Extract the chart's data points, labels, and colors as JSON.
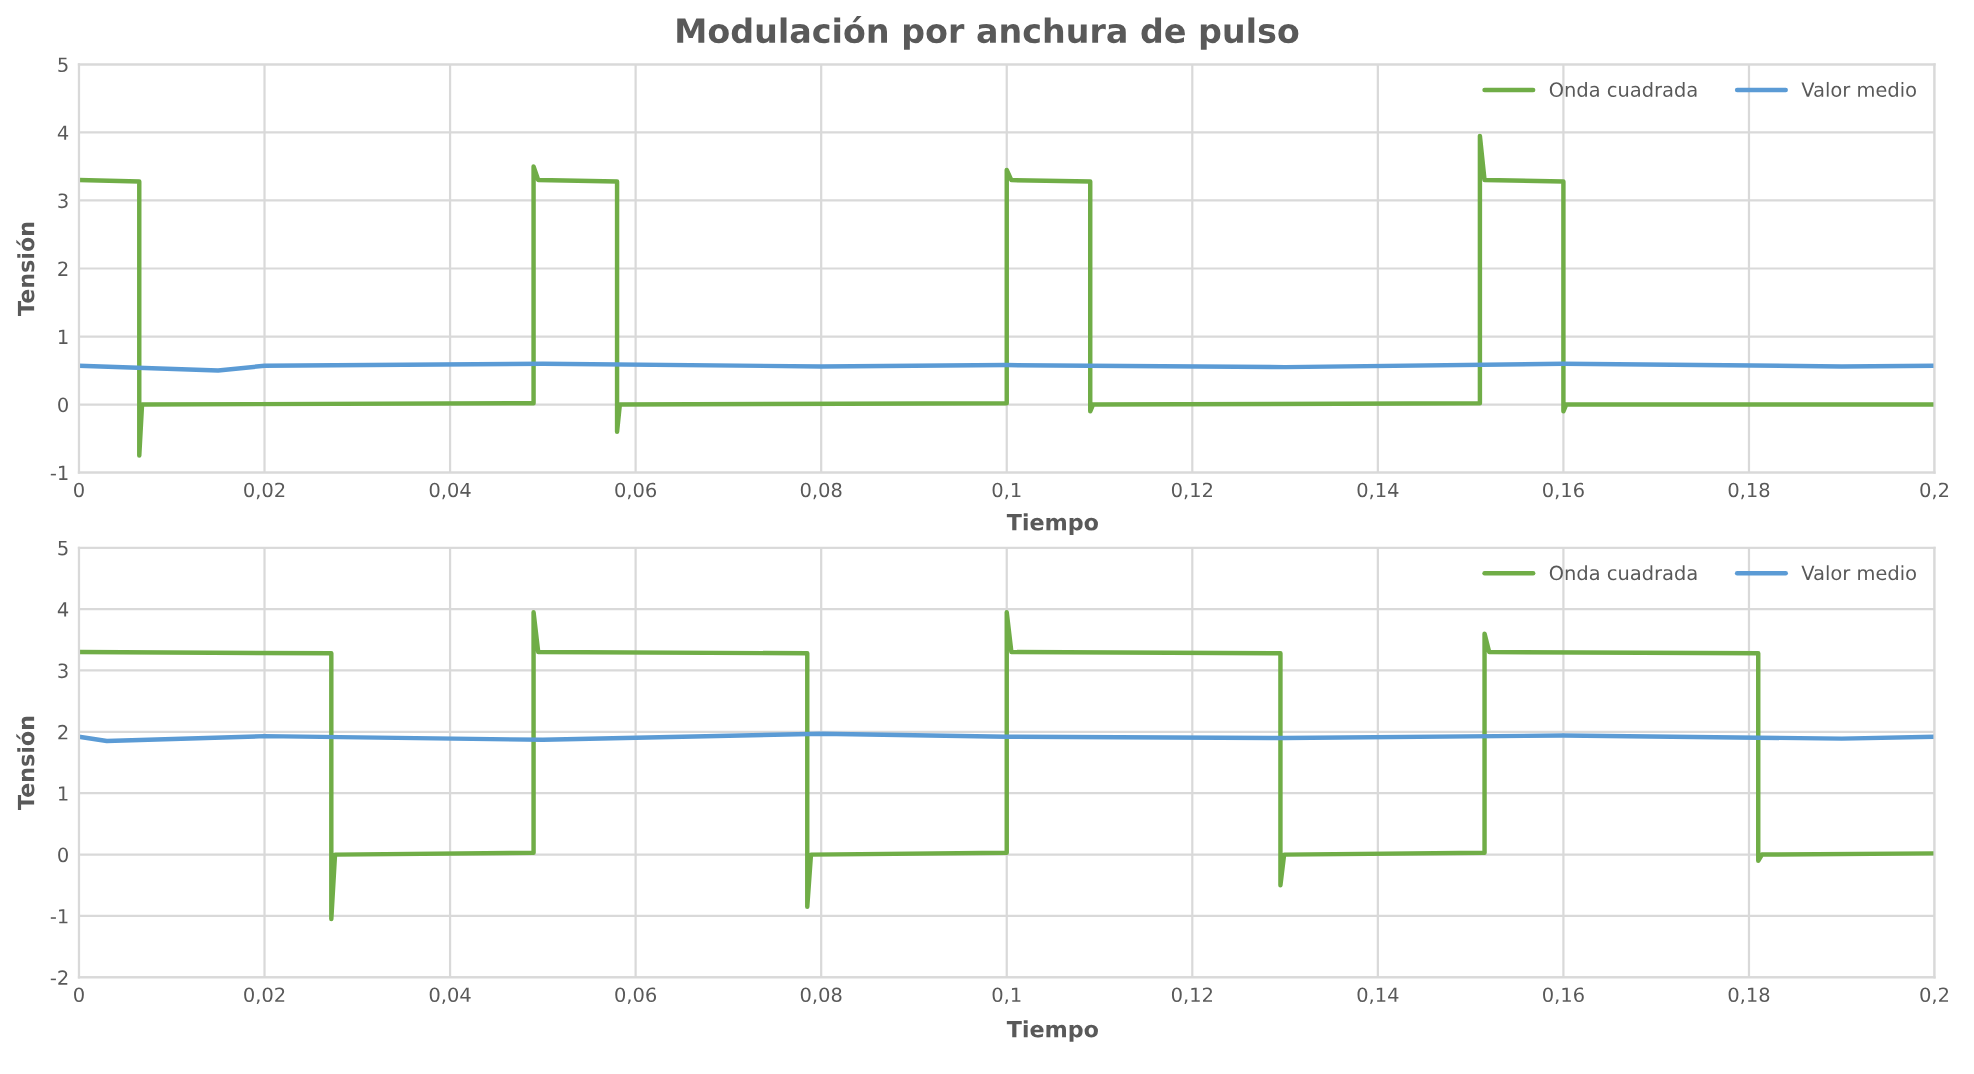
{
  "chart_data": [
    {
      "type": "line",
      "title": "Modulación por anchura de pulso",
      "xlabel": "Tiempo",
      "ylabel": "Tensión",
      "xlim": [
        0,
        0.2
      ],
      "xticks": [
        0,
        {
          "value": 0.02,
          "label": "0,02"
        },
        {
          "value": 0.04,
          "label": "0,04"
        },
        {
          "value": 0.06,
          "label": "0,06"
        },
        {
          "value": 0.08,
          "label": "0,08"
        },
        {
          "value": 0.1,
          "label": "0,1"
        },
        {
          "value": 0.12,
          "label": "0,12"
        },
        {
          "value": 0.14,
          "label": "0,14"
        },
        {
          "value": 0.16,
          "label": "0,16"
        },
        {
          "value": 0.18,
          "label": "0,18"
        },
        {
          "value": 0.2,
          "label": "0,2"
        }
      ],
      "ylim": [
        -1,
        5
      ],
      "yticks": [
        -1,
        0,
        1,
        2,
        3,
        4,
        5
      ],
      "grid": true,
      "legend": "top right",
      "series": [
        {
          "name": "Onda cuadrada",
          "color": "#70ad47",
          "x": [
            0,
            0.0065,
            0.0065,
            0.0068,
            0.049,
            0.049,
            0.0495,
            0.058,
            0.058,
            0.0583,
            0.1,
            0.1,
            0.1005,
            0.109,
            0.109,
            0.1093,
            0.151,
            0.151,
            0.1515,
            0.16,
            0.16,
            0.1603,
            0.2
          ],
          "values": [
            3.3,
            3.28,
            -0.75,
            0,
            0.02,
            3.5,
            3.3,
            3.28,
            -0.4,
            0,
            0.02,
            3.45,
            3.3,
            3.28,
            -0.1,
            0,
            0.02,
            3.95,
            3.3,
            3.28,
            -0.1,
            0,
            0
          ]
        },
        {
          "name": "Valor medio",
          "color": "#5b9bd5",
          "x": [
            0,
            0.015,
            0.02,
            0.05,
            0.08,
            0.1,
            0.13,
            0.16,
            0.19,
            0.2
          ],
          "values": [
            0.57,
            0.5,
            0.57,
            0.6,
            0.56,
            0.58,
            0.55,
            0.6,
            0.56,
            0.57
          ]
        }
      ]
    },
    {
      "type": "line",
      "xlabel": "Tiempo",
      "ylabel": "Tensión",
      "xlim": [
        0,
        0.2
      ],
      "xticks": [
        0,
        {
          "value": 0.02,
          "label": "0,02"
        },
        {
          "value": 0.04,
          "label": "0,04"
        },
        {
          "value": 0.06,
          "label": "0,06"
        },
        {
          "value": 0.08,
          "label": "0,08"
        },
        {
          "value": 0.1,
          "label": "0,1"
        },
        {
          "value": 0.12,
          "label": "0,12"
        },
        {
          "value": 0.14,
          "label": "0,14"
        },
        {
          "value": 0.16,
          "label": "0,16"
        },
        {
          "value": 0.18,
          "label": "0,18"
        },
        {
          "value": 0.2,
          "label": "0,2"
        }
      ],
      "ylim": [
        -2,
        5
      ],
      "yticks": [
        -2,
        -1,
        0,
        1,
        2,
        3,
        4,
        5
      ],
      "grid": true,
      "legend": "top right",
      "series": [
        {
          "name": "Onda cuadrada",
          "color": "#70ad47",
          "x": [
            0,
            0.0272,
            0.0272,
            0.0276,
            0.049,
            0.049,
            0.0495,
            0.0785,
            0.0785,
            0.0789,
            0.1,
            0.1,
            0.1005,
            0.1295,
            0.1295,
            0.1299,
            0.1515,
            0.1515,
            0.152,
            0.181,
            0.181,
            0.1814,
            0.2
          ],
          "values": [
            3.3,
            3.28,
            -1.05,
            0,
            0.03,
            3.95,
            3.3,
            3.28,
            -0.85,
            0,
            0.03,
            3.95,
            3.3,
            3.28,
            -0.5,
            0,
            0.03,
            3.6,
            3.3,
            3.28,
            -0.1,
            0,
            0.02
          ]
        },
        {
          "name": "Valor medio",
          "color": "#5b9bd5",
          "x": [
            0,
            0.003,
            0.02,
            0.05,
            0.08,
            0.1,
            0.13,
            0.16,
            0.19,
            0.2
          ],
          "values": [
            1.92,
            1.85,
            1.93,
            1.87,
            1.97,
            1.92,
            1.9,
            1.94,
            1.89,
            1.92
          ]
        }
      ]
    }
  ]
}
